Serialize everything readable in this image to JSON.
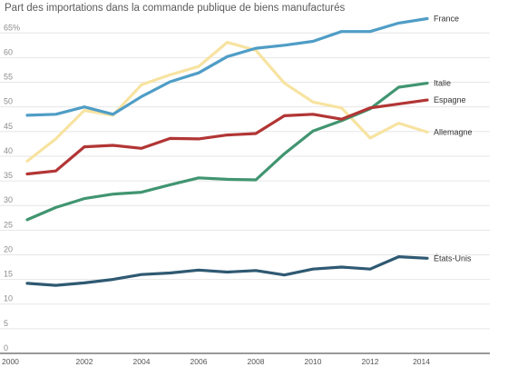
{
  "chart_data": {
    "type": "line",
    "title": "Part des importations dans la commande publique de biens manufacturés",
    "xlabel": "",
    "ylabel": "",
    "x": [
      2000,
      2001,
      2002,
      2003,
      2004,
      2005,
      2006,
      2007,
      2008,
      2009,
      2010,
      2011,
      2012,
      2013,
      2014
    ],
    "x_tick_labels": [
      "2000",
      "2002",
      "2004",
      "2006",
      "2008",
      "2010",
      "2012",
      "2014"
    ],
    "x_ticks": [
      2000,
      2002,
      2004,
      2006,
      2008,
      2010,
      2012,
      2014
    ],
    "xlim": [
      2000,
      2014
    ],
    "y_tick_labels": [
      "0",
      "5",
      "10",
      "15",
      "20",
      "25",
      "30",
      "35",
      "40",
      "45",
      "50",
      "55",
      "60",
      "65%"
    ],
    "y_ticks": [
      0,
      5,
      10,
      15,
      20,
      25,
      30,
      35,
      40,
      45,
      50,
      55,
      60,
      65
    ],
    "ylim": [
      0,
      68
    ],
    "grid": "horizontal",
    "legend": "direct labels at line ends",
    "series": [
      {
        "name": "Allemagne",
        "color": "#f7e3a1",
        "values": [
          39.0,
          43.5,
          49.3,
          48.3,
          54.5,
          56.5,
          58.2,
          63.1,
          61.5,
          54.8,
          51.0,
          49.8,
          43.7,
          46.7,
          44.9
        ]
      },
      {
        "name": "États-Unis",
        "color": "#2f5972",
        "values": [
          14.2,
          13.8,
          14.3,
          15.0,
          16.0,
          16.3,
          16.9,
          16.5,
          16.8,
          15.9,
          17.1,
          17.5,
          17.1,
          19.6,
          19.3
        ]
      },
      {
        "name": "Italie",
        "color": "#419571",
        "values": [
          27.1,
          29.6,
          31.4,
          32.3,
          32.7,
          34.2,
          35.6,
          35.3,
          35.2,
          40.5,
          45.1,
          47.2,
          49.6,
          54.0,
          54.8
        ]
      },
      {
        "name": "Espagne",
        "color": "#b23535",
        "values": [
          36.4,
          37.0,
          41.9,
          42.2,
          41.6,
          43.6,
          43.5,
          44.3,
          44.6,
          48.2,
          48.5,
          47.5,
          49.8,
          50.6,
          51.4
        ]
      },
      {
        "name": "France",
        "color": "#4f9dc6",
        "values": [
          48.3,
          48.5,
          50.0,
          48.5,
          52.1,
          55.1,
          56.9,
          60.2,
          61.9,
          62.5,
          63.3,
          65.3,
          65.3,
          67.0,
          67.9
        ]
      }
    ]
  }
}
